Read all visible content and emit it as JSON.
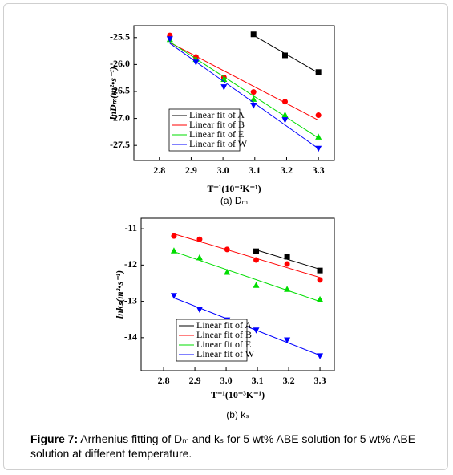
{
  "charts": [
    {
      "chart_data": {
        "type": "scatter",
        "fit": "linear",
        "ylabel": "lnDₘ(m²•s⁻¹)",
        "xlabel": "T⁻¹(10⁻³K⁻¹)",
        "sublabel": "(a) Dₘ",
        "xlim": [
          2.72,
          3.35
        ],
        "ylim": [
          -27.78,
          -25.28
        ],
        "xticks": [
          2.8,
          2.9,
          {
            "value": 3,
            "label": "3.0"
          },
          3.1,
          3.2,
          3.3
        ],
        "yticks": [
          -25.5,
          {
            "value": -26,
            "label": "-26.0"
          },
          -26.5,
          {
            "value": -27,
            "label": "-27.0"
          },
          -27.5
        ],
        "legend": "lower left",
        "series": [
          {
            "name": "Linear fit of A",
            "color": "#000000",
            "marker": "square",
            "x": [
              3.096,
              3.195,
              3.3
            ],
            "values": [
              -25.44,
              -25.83,
              -26.14
            ]
          },
          {
            "name": "Linear fit of B",
            "color": "#ff0000",
            "marker": "circle",
            "x": [
              2.833,
              2.915,
              3.003,
              3.096,
              3.195,
              3.3
            ],
            "values": [
              -25.46,
              -25.86,
              -26.24,
              -26.51,
              -26.69,
              -26.94
            ]
          },
          {
            "name": "Linear fit of E",
            "color": "#00dd00",
            "marker": "triangle-up",
            "x": [
              2.833,
              2.915,
              3.003,
              3.096,
              3.195,
              3.3
            ],
            "values": [
              -25.53,
              -25.9,
              -26.27,
              -26.64,
              -26.93,
              -27.34
            ]
          },
          {
            "name": "Linear fit of W",
            "color": "#0000ff",
            "marker": "triangle-down",
            "x": [
              2.833,
              2.915,
              3.003,
              3.096,
              3.195,
              3.3
            ],
            "values": [
              -25.53,
              -25.96,
              -26.42,
              -26.76,
              -27.03,
              -27.56
            ]
          }
        ]
      }
    },
    {
      "chart_data": {
        "type": "scatter",
        "fit": "linear",
        "ylabel": "lnkₛ(m²•s⁻¹)",
        "xlabel": "T⁻¹(10⁻³K⁻¹)",
        "sublabel": "(b) kₛ",
        "xlim": [
          2.728,
          3.346
        ],
        "ylim": [
          -14.91,
          -10.71
        ],
        "xticks": [
          2.8,
          2.9,
          {
            "value": 3,
            "label": "3.0"
          },
          3.1,
          3.2,
          3.3
        ],
        "yticks": [
          -11,
          -12,
          -13,
          -14
        ],
        "legend": "lower left",
        "series": [
          {
            "name": "Linear fit of A",
            "color": "#000000",
            "marker": "square",
            "x": [
              3.096,
              3.195,
              3.3
            ],
            "values": [
              -11.62,
              -11.77,
              -12.15
            ]
          },
          {
            "name": "Linear fit of B",
            "color": "#ff0000",
            "marker": "circle",
            "x": [
              2.833,
              2.915,
              3.003,
              3.096,
              3.195,
              3.3
            ],
            "values": [
              -11.2,
              -11.29,
              -11.57,
              -11.86,
              -11.97,
              -12.41
            ]
          },
          {
            "name": "Linear fit of E",
            "color": "#00dd00",
            "marker": "triangle-up",
            "x": [
              2.833,
              2.915,
              3.003,
              3.096,
              3.195,
              3.3
            ],
            "values": [
              -11.6,
              -11.79,
              -12.19,
              -12.55,
              -12.66,
              -12.94
            ]
          },
          {
            "name": "Linear fit of W",
            "color": "#0000ff",
            "marker": "triangle-down",
            "x": [
              2.833,
              2.915,
              3.003,
              3.096,
              3.195,
              3.3
            ],
            "values": [
              -12.85,
              -13.23,
              -13.52,
              -13.8,
              -14.07,
              -14.51
            ]
          }
        ]
      }
    }
  ],
  "caption": {
    "label": "Figure 7:",
    "text": "Arrhenius fitting of Dₘ and kₛ for 5 wt% ABE solution for 5 wt% ABE solution at different temperature."
  }
}
